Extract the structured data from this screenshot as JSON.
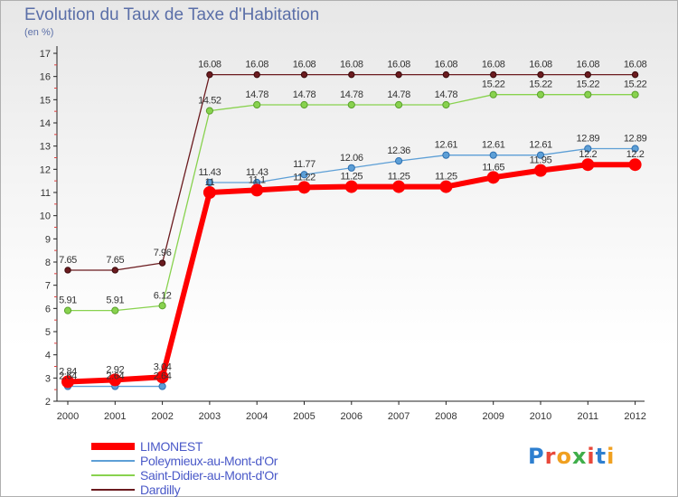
{
  "header": {
    "title": "Evolution du Taux de Taxe d'Habitation",
    "unit": "(en %)"
  },
  "logo": {
    "text": "Proxiti"
  },
  "chart_data": {
    "type": "line",
    "title": "Evolution du Taux de Taxe d'Habitation",
    "ylabel": "(en %)",
    "xlabel": "",
    "ylim": [
      2,
      17
    ],
    "yticks": [
      2,
      3,
      4,
      5,
      6,
      7,
      8,
      9,
      10,
      11,
      12,
      13,
      14,
      15,
      16,
      17
    ],
    "grid": false,
    "legend": "bottom-left",
    "categories": [
      "2000",
      "2001",
      "2002",
      "2003",
      "2004",
      "2005",
      "2006",
      "2007",
      "2008",
      "2009",
      "2010",
      "2011",
      "2012"
    ],
    "series": [
      {
        "name": "Dardilly",
        "color": "#6b1b1f",
        "values": [
          7.65,
          7.65,
          7.96,
          16.08,
          16.08,
          16.08,
          16.08,
          16.08,
          16.08,
          16.08,
          16.08,
          16.08,
          16.08
        ],
        "labels": [
          "7.65",
          "7.65",
          "7.96",
          "16.08",
          "16.08",
          "16.08",
          "16.08",
          "16.08",
          "16.08",
          "16.08",
          "16.08",
          "16.08",
          "16.08"
        ]
      },
      {
        "name": "Saint-Didier-au-Mont-d'Or",
        "color": "#88d24e",
        "values": [
          5.91,
          5.91,
          6.12,
          14.52,
          14.78,
          14.78,
          14.78,
          14.78,
          14.78,
          15.22,
          15.22,
          15.22,
          15.22
        ],
        "labels": [
          "5.91",
          "5.91",
          "6.12",
          "14.52",
          "14.78",
          "14.78",
          "14.78",
          "14.78",
          "14.78",
          "15.22",
          "15.22",
          "15.22",
          "15.22"
        ]
      },
      {
        "name": "Poleymieux-au-Mont-d'Or",
        "color": "#5d9fd6",
        "values": [
          2.64,
          2.64,
          2.64,
          11.43,
          11.43,
          11.77,
          12.06,
          12.36,
          12.61,
          12.61,
          12.61,
          12.89,
          12.89
        ],
        "labels": [
          "2.64",
          "2.64",
          "2.64",
          "11.43",
          "11.43",
          "11.77",
          "12.06",
          "12.36",
          "12.61",
          "12.61",
          "12.61",
          "12.89",
          "12.89"
        ]
      },
      {
        "name": "LIMONEST",
        "color": "#ff0000",
        "values": [
          2.84,
          2.92,
          3.04,
          11,
          11.1,
          11.22,
          11.25,
          11.25,
          11.25,
          11.65,
          11.95,
          12.2,
          12.2
        ],
        "labels": [
          "2.84",
          "2.92",
          "3.04",
          "11",
          "11.1",
          "11.22",
          "11.25",
          "11.25",
          "11.25",
          "11.65",
          "11.95",
          "12.2",
          "12.2"
        ]
      }
    ],
    "legend_order": [
      "LIMONEST",
      "Poleymieux-au-Mont-d'Or",
      "Saint-Didier-au-Mont-d'Or",
      "Dardilly"
    ]
  }
}
